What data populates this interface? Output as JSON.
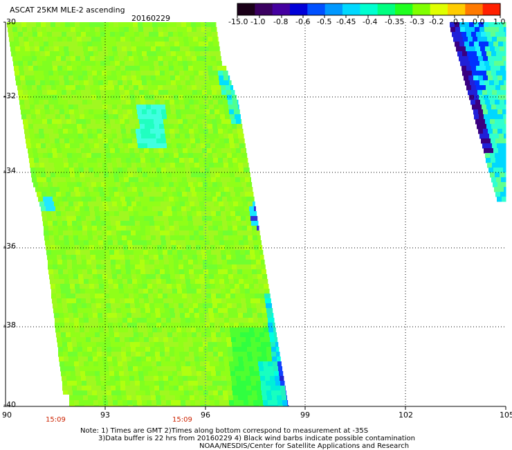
{
  "header": {
    "title": "ASCAT 25KM MLE-2 ascending",
    "date": "20160229"
  },
  "colorbar": {
    "labels": [
      "-15.0",
      "-1.0",
      "-0.8",
      "-0.6",
      "-0.5",
      "-0.45",
      "-0.4",
      "-0.35",
      "-0.3",
      "-0.2",
      "-0.1",
      "0.0",
      "1.0"
    ],
    "colors": [
      "#1a0018",
      "#3a0060",
      "#4400a0",
      "#0000d8",
      "#0050ff",
      "#0098ff",
      "#00d8ff",
      "#00ffd0",
      "#00ff80",
      "#20ff20",
      "#80ff00",
      "#e0ff00",
      "#ffcc00",
      "#ff7a00",
      "#ff2000"
    ]
  },
  "axes": {
    "y_labels": [
      "-30",
      "-32",
      "-34",
      "-36",
      "-38",
      "-40"
    ],
    "x_labels": [
      "90",
      "93",
      "96",
      "99",
      "102",
      "105"
    ],
    "times": [
      "15:09",
      "15:09"
    ]
  },
  "notes": {
    "line1": "Note: 1) Times are GMT 2)Times along bottom correspond to measurement at -35S",
    "line2": "3)Data buffer is 22 hrs from 20160229 4) Black wind barbs indicate possible contamination",
    "line3": "NOAA/NESDIS/Center for Satellite Applications and Research"
  }
}
